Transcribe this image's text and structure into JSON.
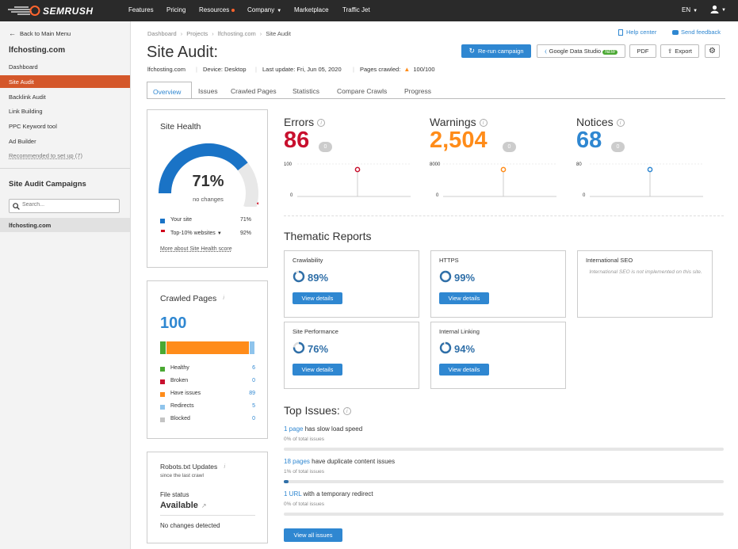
{
  "topnav": {
    "brand": "SEMRUSH",
    "items": [
      "Features",
      "Pricing",
      "Resources",
      "Company",
      "Marketplace",
      "Traffic Jet"
    ],
    "lang": "EN"
  },
  "sidebar": {
    "back": "Back to Main Menu",
    "project": "lfchosting.com",
    "items": [
      "Dashboard",
      "Site Audit",
      "Backlink Audit",
      "Link Building",
      "PPC Keyword tool",
      "Ad Builder"
    ],
    "recommended": "Recommended to set up (7)",
    "campaigns_title": "Site Audit Campaigns",
    "search_placeholder": "Search...",
    "campaign": "lfchosting.com"
  },
  "header": {
    "breadcrumb": [
      "Dashboard",
      "Projects",
      "lfchosting.com",
      "Site Audit"
    ],
    "help": "Help center",
    "feedback": "Send feedback",
    "title": "Site Audit:",
    "domain": "lfchosting.com",
    "device": "Device: Desktop",
    "last_update": "Last update: Fri, Jun 05, 2020",
    "pages_crawled_label": "Pages crawled:",
    "pages_crawled": "100/100",
    "rerun": "Re-run campaign",
    "gds": "Google Data Studio",
    "gds_badge": "NEW",
    "pdf": "PDF",
    "export": "Export"
  },
  "tabs": [
    "Overview",
    "Issues",
    "Crawled Pages",
    "Statistics",
    "Compare Crawls",
    "Progress"
  ],
  "site_health": {
    "title": "Site Health",
    "percent": "71%",
    "percent_value": 71,
    "sub": "no changes",
    "your_site": "Your site",
    "your_site_val": "71%",
    "top10": "Top-10% websites",
    "top10_val": "92%",
    "more": "More about Site Health score",
    "color_your": "#1a73c6",
    "color_top": "#d0021b"
  },
  "crawled": {
    "title": "Crawled Pages",
    "total": "100",
    "rows": [
      {
        "label": "Healthy",
        "value": "6",
        "color": "#4aa832"
      },
      {
        "label": "Broken",
        "value": "0",
        "color": "#c8102e"
      },
      {
        "label": "Have issues",
        "value": "89",
        "color": "#ff8c1a"
      },
      {
        "label": "Redirects",
        "value": "5",
        "color": "#8fc4ec"
      },
      {
        "label": "Blocked",
        "value": "0",
        "color": "#c4c4c4"
      }
    ]
  },
  "robots": {
    "title": "Robots.txt Updates",
    "sub": "since the last crawl",
    "file_status": "File status",
    "status": "Available",
    "changes": "No changes detected"
  },
  "metrics": [
    {
      "label": "Errors",
      "value": "86",
      "badge": "0",
      "ymax": "100",
      "ymin": "0",
      "color": "#c8102e"
    },
    {
      "label": "Warnings",
      "value": "2,504",
      "badge": "0",
      "ymax": "8000",
      "ymin": "0",
      "color": "#ff8c1a"
    },
    {
      "label": "Notices",
      "value": "68",
      "badge": "0",
      "ymax": "80",
      "ymin": "0",
      "color": "#2f87d1"
    }
  ],
  "thematic": {
    "title": "Thematic Reports",
    "view": "View details",
    "cards": [
      {
        "name": "Crawlability",
        "pct": "89%"
      },
      {
        "name": "HTTPS",
        "pct": "99%"
      },
      {
        "name": "International SEO",
        "note": "International SEO is not implemented on this site."
      },
      {
        "name": "Site Performance",
        "pct": "76%"
      },
      {
        "name": "Internal Linking",
        "pct": "94%"
      }
    ]
  },
  "top_issues": {
    "title": "Top Issues:",
    "items": [
      {
        "hl": "1 page",
        "rest": " has slow load speed",
        "sub": "0% of total issues",
        "fill": 0
      },
      {
        "hl": "18 pages",
        "rest": " have duplicate content issues",
        "sub": "1% of total issues",
        "fill": 1
      },
      {
        "hl": "1 URL",
        "rest": " with a temporary redirect",
        "sub": "0% of total issues",
        "fill": 0
      }
    ],
    "view_all": "View all issues"
  }
}
